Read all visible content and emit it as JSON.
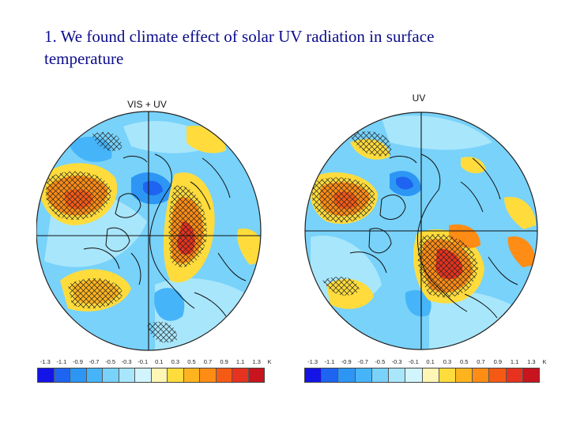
{
  "slide": {
    "title_line1": "1. We found climate effect of solar UV radiation in surface",
    "title_line2": "temperature"
  },
  "panels": [
    {
      "label": "VIS + UV"
    },
    {
      "label": "UV"
    }
  ],
  "colorbar": {
    "tick_labels": [
      "-1.3",
      "-1.1",
      "-0.9",
      "-0.7",
      "-0.5",
      "-0.3",
      "-0.1",
      "0.1",
      "0.3",
      "0.5",
      "0.7",
      "0.9",
      "1.1",
      "1.3"
    ],
    "unit": "K",
    "colors": [
      "#1414e6",
      "#1e64f0",
      "#2d96f5",
      "#46b4f8",
      "#78d2fa",
      "#a8e6fc",
      "#d2f4fd",
      "#fff5b4",
      "#ffdc3c",
      "#ffb41e",
      "#ff8c14",
      "#f55a14",
      "#e6321e",
      "#c8141e"
    ]
  }
}
